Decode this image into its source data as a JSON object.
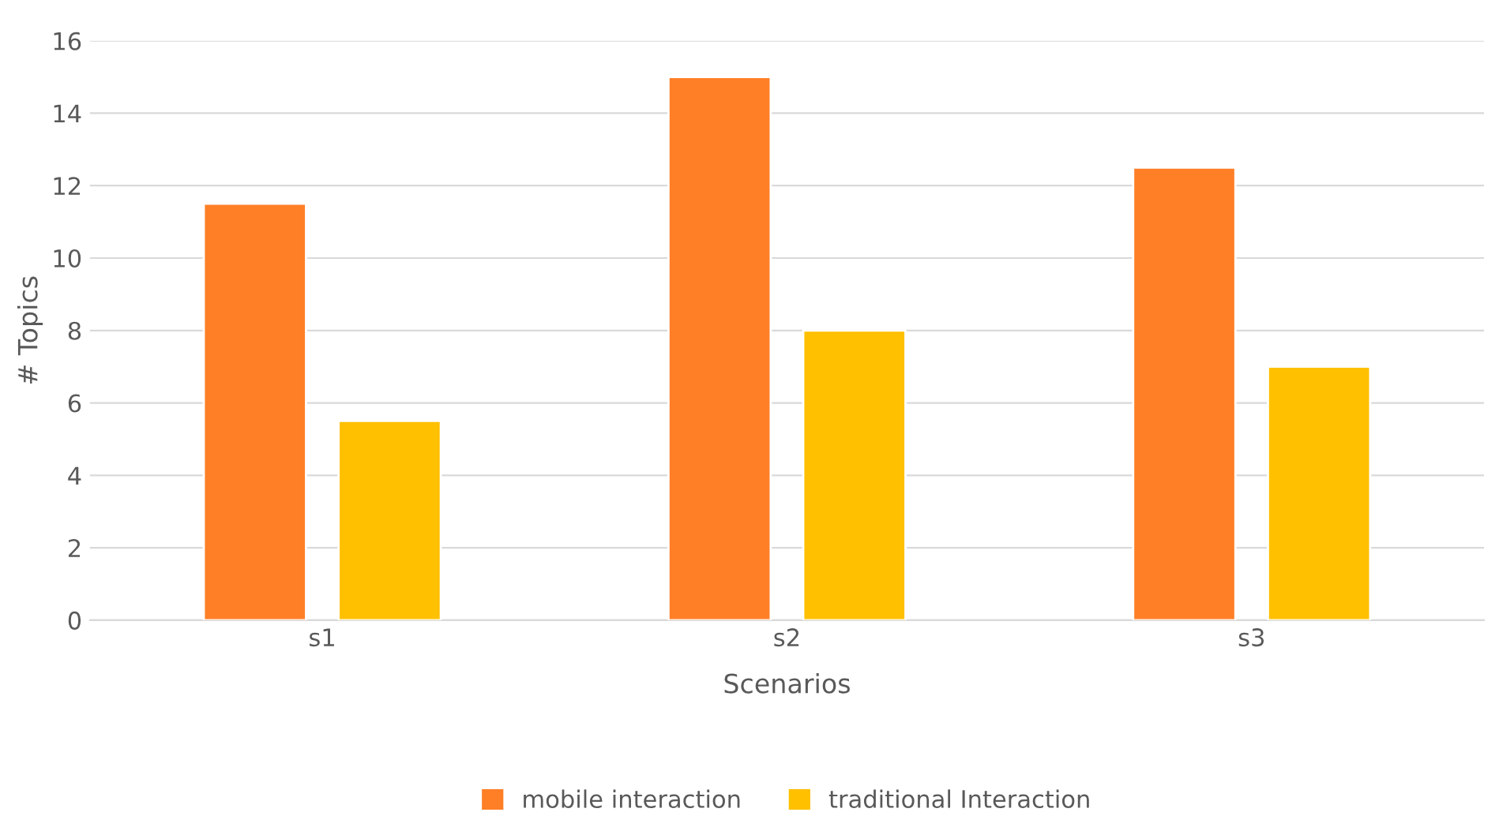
{
  "chart_data": {
    "type": "bar",
    "xlabel": "Scenarios",
    "ylabel": "# Topics",
    "categories": [
      "s1",
      "s2",
      "s3"
    ],
    "series": [
      {
        "name": "mobile interaction",
        "color": "#ff7f27",
        "values": [
          11.5,
          15,
          12.5
        ]
      },
      {
        "name": "traditional Interaction",
        "color": "#ffc000",
        "values": [
          5.5,
          8,
          7
        ]
      }
    ],
    "ylim": [
      0,
      16
    ],
    "yticks": [
      0,
      2,
      4,
      6,
      8,
      10,
      12,
      14,
      16
    ],
    "grid": "y",
    "legend": "bottom"
  }
}
